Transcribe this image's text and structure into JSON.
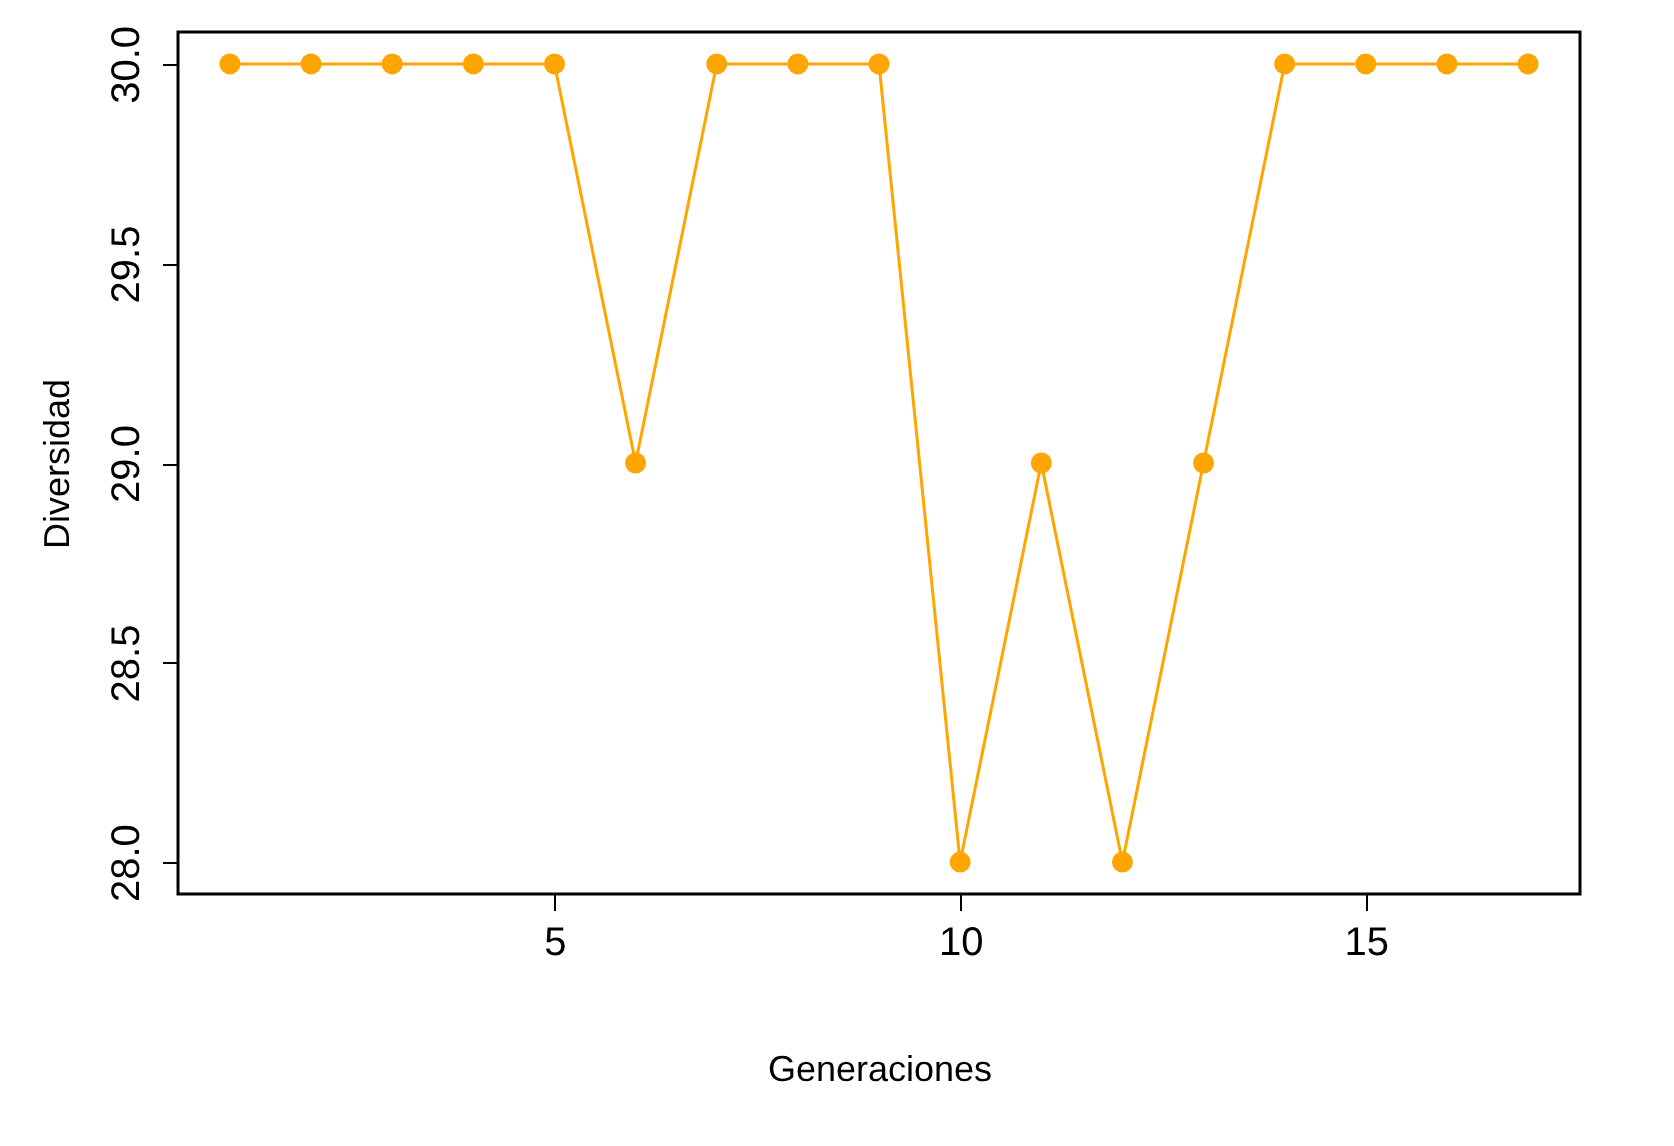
{
  "chart_data": {
    "type": "line",
    "xlabel": "Generaciones",
    "ylabel": "Diversidad",
    "x": [
      1,
      2,
      3,
      4,
      5,
      6,
      7,
      8,
      9,
      10,
      11,
      12,
      13,
      14,
      15,
      16,
      17
    ],
    "series": [
      {
        "color": "#ffa500",
        "values": [
          30,
          30,
          30,
          30,
          30,
          29,
          30,
          30,
          30,
          28,
          29,
          28,
          29,
          30,
          30,
          30,
          30
        ]
      }
    ],
    "xlim": [
      0.36,
      17.64
    ],
    "ylim": [
      27.92,
      30.08
    ],
    "xticks": [
      5,
      10,
      15
    ],
    "yticks": [
      {
        "value": 28,
        "label": "28.0"
      },
      28.5,
      {
        "value": 29,
        "label": "29.0"
      },
      29.5,
      {
        "value": 30,
        "label": "30.0"
      }
    ],
    "marker": "circle",
    "line_style": "solid",
    "grid": false
  }
}
